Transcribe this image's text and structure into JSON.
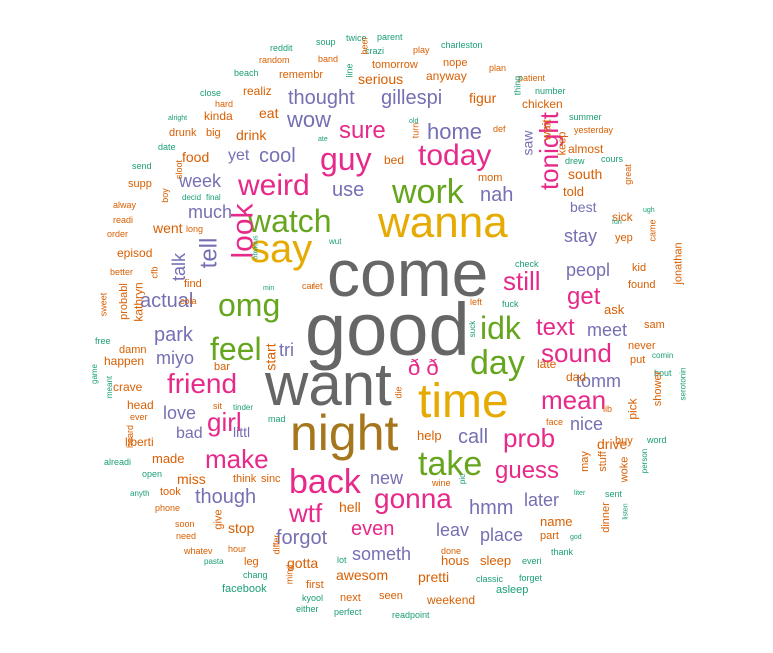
{
  "palette": {
    "gray": "#666666",
    "teal": "#1b9e77",
    "orange": "#d95f02",
    "purple": "#7570b3",
    "pink": "#e7298a",
    "green": "#66a61e",
    "gold": "#e6ab02",
    "brown": "#a6761d"
  },
  "words": [
    {
      "text": "come",
      "color": "gray",
      "weight": 100
    },
    {
      "text": "good",
      "color": "gray",
      "weight": 100
    },
    {
      "text": "want",
      "color": "gray",
      "weight": 85
    },
    {
      "text": "night",
      "color": "brown",
      "weight": 70
    },
    {
      "text": "wanna",
      "color": "gold",
      "weight": 55
    },
    {
      "text": "time",
      "color": "gold",
      "weight": 55
    },
    {
      "text": "say",
      "color": "gold",
      "weight": 50
    },
    {
      "text": "watch",
      "color": "green",
      "weight": 45
    },
    {
      "text": "work",
      "color": "green",
      "weight": 42
    },
    {
      "text": "take",
      "color": "green",
      "weight": 40
    },
    {
      "text": "day",
      "color": "green",
      "weight": 38
    },
    {
      "text": "idk",
      "color": "green",
      "weight": 38
    },
    {
      "text": "omg",
      "color": "green",
      "weight": 38
    },
    {
      "text": "feel",
      "color": "green",
      "weight": 38
    },
    {
      "text": "guy",
      "color": "pink",
      "weight": 36
    },
    {
      "text": "today",
      "color": "pink",
      "weight": 34
    },
    {
      "text": "back",
      "color": "pink",
      "weight": 36
    },
    {
      "text": "weird",
      "color": "pink",
      "weight": 32
    },
    {
      "text": "gonna",
      "color": "pink",
      "weight": 32
    },
    {
      "text": "tonight",
      "color": "pink",
      "weight": 30
    },
    {
      "text": "friend",
      "color": "pink",
      "weight": 30
    },
    {
      "text": "look",
      "color": "pink",
      "weight": 30
    },
    {
      "text": "still",
      "color": "pink",
      "weight": 28
    },
    {
      "text": "make",
      "color": "pink",
      "weight": 28
    },
    {
      "text": "sure",
      "color": "pink",
      "weight": 28
    },
    {
      "text": "mean",
      "color": "pink",
      "weight": 28
    },
    {
      "text": "sound",
      "color": "pink",
      "weight": 28
    },
    {
      "text": "prob",
      "color": "pink",
      "weight": 28
    },
    {
      "text": "girl",
      "color": "pink",
      "weight": 26
    },
    {
      "text": "wtf",
      "color": "pink",
      "weight": 26
    },
    {
      "text": "text",
      "color": "pink",
      "weight": 24
    },
    {
      "text": "get",
      "color": "pink",
      "weight": 24
    },
    {
      "text": "guess",
      "color": "pink",
      "weight": 24
    },
    {
      "text": "ð ð",
      "color": "pink",
      "weight": 24
    },
    {
      "text": "tell",
      "color": "purple",
      "weight": 26
    },
    {
      "text": "home",
      "color": "purple",
      "weight": 24
    },
    {
      "text": "wow",
      "color": "purple",
      "weight": 24
    },
    {
      "text": "thought",
      "color": "purple",
      "weight": 22
    },
    {
      "text": "gillespi",
      "color": "purple",
      "weight": 22
    },
    {
      "text": "cool",
      "color": "purple",
      "weight": 22
    },
    {
      "text": "use",
      "color": "purple",
      "weight": 20
    },
    {
      "text": "nah",
      "color": "purple",
      "weight": 22
    },
    {
      "text": "much",
      "color": "purple",
      "weight": 20
    },
    {
      "text": "actual",
      "color": "purple",
      "weight": 22
    },
    {
      "text": "park",
      "color": "purple",
      "weight": 22
    },
    {
      "text": "though",
      "color": "purple",
      "weight": 22
    },
    {
      "text": "hmm",
      "color": "purple",
      "weight": 22
    },
    {
      "text": "call",
      "color": "purple",
      "weight": 20
    },
    {
      "text": "forgot",
      "color": "purple",
      "weight": 22
    },
    {
      "text": "someth",
      "color": "purple",
      "weight": 20
    },
    {
      "text": "place",
      "color": "purple",
      "weight": 20
    },
    {
      "text": "love",
      "color": "purple",
      "weight": 18
    },
    {
      "text": "stay",
      "color": "purple",
      "weight": 18
    },
    {
      "text": "peopl",
      "color": "purple",
      "weight": 18
    },
    {
      "text": "meet",
      "color": "purple",
      "weight": 18
    },
    {
      "text": "tomm",
      "color": "purple",
      "weight": 18
    },
    {
      "text": "nice",
      "color": "purple",
      "weight": 18
    },
    {
      "text": "leav",
      "color": "purple",
      "weight": 18
    },
    {
      "text": "new",
      "color": "purple",
      "weight": 18
    },
    {
      "text": "talk",
      "color": "purple",
      "weight": 18
    },
    {
      "text": "miyo",
      "color": "purple",
      "weight": 18
    },
    {
      "text": "tri",
      "color": "purple",
      "weight": 18
    },
    {
      "text": "week",
      "color": "purple",
      "weight": 16
    },
    {
      "text": "yet",
      "color": "purple",
      "weight": 16
    },
    {
      "text": "bad",
      "color": "purple",
      "weight": 16
    },
    {
      "text": "littl",
      "color": "purple",
      "weight": 14
    },
    {
      "text": "later",
      "color": "purple",
      "weight": 18
    },
    {
      "text": "saw",
      "color": "purple",
      "weight": 14
    },
    {
      "text": "best",
      "color": "purple",
      "weight": 14
    },
    {
      "text": "even",
      "color": "pink",
      "weight": 20
    },
    {
      "text": "hell",
      "color": "orange",
      "weight": 14
    },
    {
      "text": "eat",
      "color": "orange",
      "weight": 14
    },
    {
      "text": "drink",
      "color": "orange",
      "weight": 14
    },
    {
      "text": "went",
      "color": "orange",
      "weight": 14
    },
    {
      "text": "food",
      "color": "orange",
      "weight": 14
    },
    {
      "text": "start",
      "color": "orange",
      "weight": 14
    },
    {
      "text": "miss",
      "color": "orange",
      "weight": 14
    },
    {
      "text": "made",
      "color": "orange",
      "weight": 13
    },
    {
      "text": "stop",
      "color": "orange",
      "weight": 14
    },
    {
      "text": "gotta",
      "color": "orange",
      "weight": 14
    },
    {
      "text": "awesom",
      "color": "orange",
      "weight": 14
    },
    {
      "text": "pretti",
      "color": "orange",
      "weight": 14
    },
    {
      "text": "sleep",
      "color": "orange",
      "weight": 13
    },
    {
      "text": "hous",
      "color": "orange",
      "weight": 13
    },
    {
      "text": "name",
      "color": "orange",
      "weight": 13
    },
    {
      "text": "drive",
      "color": "orange",
      "weight": 14
    },
    {
      "text": "help",
      "color": "orange",
      "weight": 13
    },
    {
      "text": "told",
      "color": "orange",
      "weight": 13
    },
    {
      "text": "south",
      "color": "orange",
      "weight": 14
    },
    {
      "text": "ask",
      "color": "orange",
      "weight": 13
    },
    {
      "text": "late",
      "color": "orange",
      "weight": 12
    },
    {
      "text": "dad",
      "color": "orange",
      "weight": 12
    },
    {
      "text": "pick",
      "color": "orange",
      "weight": 12
    },
    {
      "text": "serious",
      "color": "orange",
      "weight": 14
    },
    {
      "text": "figur",
      "color": "orange",
      "weight": 14
    },
    {
      "text": "anyway",
      "color": "orange",
      "weight": 12
    },
    {
      "text": "chicken",
      "color": "orange",
      "weight": 12
    },
    {
      "text": "almost",
      "color": "orange",
      "weight": 12
    },
    {
      "text": "wait",
      "color": "orange",
      "weight": 12
    },
    {
      "text": "keep",
      "color": "orange",
      "weight": 11
    },
    {
      "text": "episod",
      "color": "orange",
      "weight": 12
    },
    {
      "text": "kathryn",
      "color": "orange",
      "weight": 12
    },
    {
      "text": "happen",
      "color": "orange",
      "weight": 12
    },
    {
      "text": "crave",
      "color": "orange",
      "weight": 12
    },
    {
      "text": "head",
      "color": "orange",
      "weight": 12
    },
    {
      "text": "liberti",
      "color": "orange",
      "weight": 12
    },
    {
      "text": "mom",
      "color": "orange",
      "weight": 11
    },
    {
      "text": "bed",
      "color": "orange",
      "weight": 12
    },
    {
      "text": "kinda",
      "color": "orange",
      "weight": 12
    },
    {
      "text": "sick",
      "color": "orange",
      "weight": 12
    },
    {
      "text": "remembr",
      "color": "orange",
      "weight": 11
    }
  ],
  "small_words": [
    {
      "text": "reddit",
      "color": "teal"
    },
    {
      "text": "soup",
      "color": "teal"
    },
    {
      "text": "twice",
      "color": "teal"
    },
    {
      "text": "parent",
      "color": "teal"
    },
    {
      "text": "random",
      "color": "orange"
    },
    {
      "text": "band",
      "color": "orange"
    },
    {
      "text": "crazi",
      "color": "teal"
    },
    {
      "text": "play",
      "color": "orange"
    },
    {
      "text": "charleston",
      "color": "teal"
    },
    {
      "text": "beach",
      "color": "teal"
    },
    {
      "text": "line",
      "color": "teal"
    },
    {
      "text": "beer",
      "color": "orange"
    },
    {
      "text": "tomorrow",
      "color": "orange"
    },
    {
      "text": "nope",
      "color": "orange"
    },
    {
      "text": "plan",
      "color": "orange"
    },
    {
      "text": "close",
      "color": "teal"
    },
    {
      "text": "realiz",
      "color": "orange"
    },
    {
      "text": "patient",
      "color": "orange"
    },
    {
      "text": "hard",
      "color": "orange"
    },
    {
      "text": "number",
      "color": "teal"
    },
    {
      "text": "thing",
      "color": "teal"
    },
    {
      "text": "alright",
      "color": "teal"
    },
    {
      "text": "big",
      "color": "orange"
    },
    {
      "text": "old",
      "color": "teal"
    },
    {
      "text": "turn",
      "color": "orange"
    },
    {
      "text": "summer",
      "color": "teal"
    },
    {
      "text": "drunk",
      "color": "orange"
    },
    {
      "text": "ate",
      "color": "teal"
    },
    {
      "text": "def",
      "color": "orange"
    },
    {
      "text": "yesterday",
      "color": "orange"
    },
    {
      "text": "date",
      "color": "teal"
    },
    {
      "text": "drew",
      "color": "teal"
    },
    {
      "text": "send",
      "color": "teal"
    },
    {
      "text": "cours",
      "color": "teal"
    },
    {
      "text": "supp",
      "color": "orange"
    },
    {
      "text": "decid",
      "color": "teal"
    },
    {
      "text": "final",
      "color": "teal"
    },
    {
      "text": "great",
      "color": "orange"
    },
    {
      "text": "alway",
      "color": "orange"
    },
    {
      "text": "boy",
      "color": "orange"
    },
    {
      "text": "sloot",
      "color": "orange"
    },
    {
      "text": "readi",
      "color": "orange"
    },
    {
      "text": "order",
      "color": "orange"
    },
    {
      "text": "long",
      "color": "orange"
    },
    {
      "text": "fun",
      "color": "teal"
    },
    {
      "text": "ugh",
      "color": "teal"
    },
    {
      "text": "came",
      "color": "orange"
    },
    {
      "text": "yep",
      "color": "orange"
    },
    {
      "text": "wut",
      "color": "teal"
    },
    {
      "text": "better",
      "color": "orange"
    },
    {
      "text": "cfb",
      "color": "orange"
    },
    {
      "text": "obvious",
      "color": "teal"
    },
    {
      "text": "check",
      "color": "teal"
    },
    {
      "text": "kid",
      "color": "orange"
    },
    {
      "text": "jonathan",
      "color": "orange"
    },
    {
      "text": "sweet",
      "color": "orange"
    },
    {
      "text": "probabl",
      "color": "orange"
    },
    {
      "text": "find",
      "color": "orange"
    },
    {
      "text": "min",
      "color": "teal"
    },
    {
      "text": "car",
      "color": "orange"
    },
    {
      "text": "let",
      "color": "orange"
    },
    {
      "text": "fuck",
      "color": "teal"
    },
    {
      "text": "left",
      "color": "orange"
    },
    {
      "text": "found",
      "color": "orange"
    },
    {
      "text": "sam",
      "color": "orange"
    },
    {
      "text": "cola",
      "color": "orange"
    },
    {
      "text": "free",
      "color": "teal"
    },
    {
      "text": "damn",
      "color": "orange"
    },
    {
      "text": "suck",
      "color": "teal"
    },
    {
      "text": "never",
      "color": "orange"
    },
    {
      "text": "put",
      "color": "orange"
    },
    {
      "text": "comin",
      "color": "teal"
    },
    {
      "text": "game",
      "color": "teal"
    },
    {
      "text": "bar",
      "color": "orange"
    },
    {
      "text": "bout",
      "color": "teal"
    },
    {
      "text": "meant",
      "color": "teal"
    },
    {
      "text": "die",
      "color": "orange"
    },
    {
      "text": "shower",
      "color": "orange"
    },
    {
      "text": "serotonin",
      "color": "teal"
    },
    {
      "text": "ever",
      "color": "orange"
    },
    {
      "text": "sit",
      "color": "orange"
    },
    {
      "text": "tinder",
      "color": "teal"
    },
    {
      "text": "mad",
      "color": "teal"
    },
    {
      "text": "lib",
      "color": "orange"
    },
    {
      "text": "face",
      "color": "orange"
    },
    {
      "text": "heard",
      "color": "orange"
    },
    {
      "text": "buy",
      "color": "orange"
    },
    {
      "text": "word",
      "color": "teal"
    },
    {
      "text": "alreadi",
      "color": "teal"
    },
    {
      "text": "may",
      "color": "orange"
    },
    {
      "text": "stuff",
      "color": "orange"
    },
    {
      "text": "person",
      "color": "teal"
    },
    {
      "text": "open",
      "color": "teal"
    },
    {
      "text": "think",
      "color": "orange"
    },
    {
      "text": "sinc",
      "color": "orange"
    },
    {
      "text": "woke",
      "color": "orange"
    },
    {
      "text": "wine",
      "color": "orange"
    },
    {
      "text": "anyth",
      "color": "teal"
    },
    {
      "text": "took",
      "color": "orange"
    },
    {
      "text": "pic",
      "color": "teal"
    },
    {
      "text": "liter",
      "color": "teal"
    },
    {
      "text": "sent",
      "color": "teal"
    },
    {
      "text": "phone",
      "color": "orange"
    },
    {
      "text": "give",
      "color": "orange"
    },
    {
      "text": "listen",
      "color": "teal"
    },
    {
      "text": "soon",
      "color": "orange"
    },
    {
      "text": "dinner",
      "color": "orange"
    },
    {
      "text": "need",
      "color": "orange"
    },
    {
      "text": "part",
      "color": "orange"
    },
    {
      "text": "god",
      "color": "teal"
    },
    {
      "text": "hour",
      "color": "orange"
    },
    {
      "text": "whatev",
      "color": "orange"
    },
    {
      "text": "thank",
      "color": "teal"
    },
    {
      "text": "differ",
      "color": "orange"
    },
    {
      "text": "pasta",
      "color": "teal"
    },
    {
      "text": "leg",
      "color": "orange"
    },
    {
      "text": "lot",
      "color": "teal"
    },
    {
      "text": "done",
      "color": "orange"
    },
    {
      "text": "everi",
      "color": "teal"
    },
    {
      "text": "chang",
      "color": "teal"
    },
    {
      "text": "mind",
      "color": "orange"
    },
    {
      "text": "classic",
      "color": "teal"
    },
    {
      "text": "forget",
      "color": "teal"
    },
    {
      "text": "facebook",
      "color": "teal"
    },
    {
      "text": "first",
      "color": "orange"
    },
    {
      "text": "kyool",
      "color": "teal"
    },
    {
      "text": "asleep",
      "color": "teal"
    },
    {
      "text": "either",
      "color": "teal"
    },
    {
      "text": "next",
      "color": "orange"
    },
    {
      "text": "seen",
      "color": "orange"
    },
    {
      "text": "weekend",
      "color": "orange"
    },
    {
      "text": "perfect",
      "color": "teal"
    },
    {
      "text": "readpoint",
      "color": "teal"
    }
  ]
}
